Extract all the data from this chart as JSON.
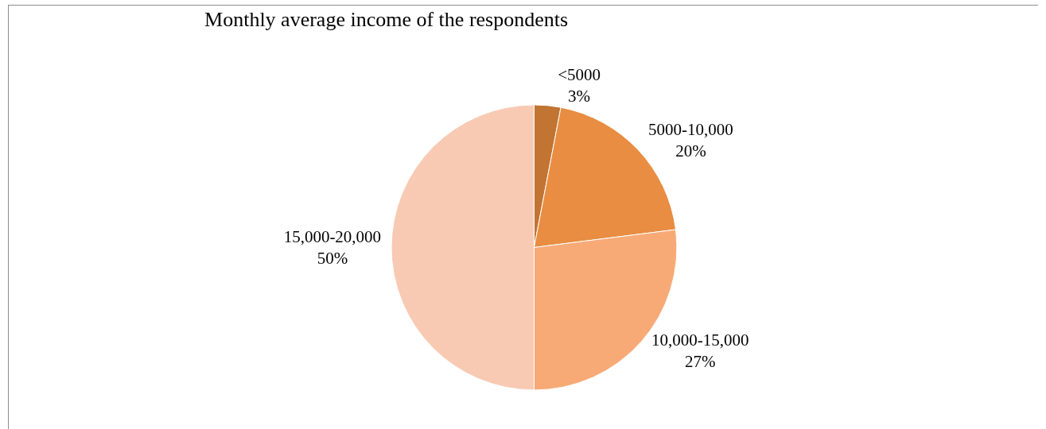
{
  "chart_data": {
    "type": "pie",
    "title": "Monthly average income of the respondents",
    "categories": [
      "<5000",
      "5000-10,000",
      "10,000-15,000",
      "15,000-20,000"
    ],
    "values": [
      3,
      20,
      27,
      50
    ],
    "value_labels": [
      "3%",
      "20%",
      "27%",
      "50%"
    ],
    "colors": [
      "#c27433",
      "#e88d41",
      "#f7aa76",
      "#f8cab3"
    ],
    "legend": false
  }
}
